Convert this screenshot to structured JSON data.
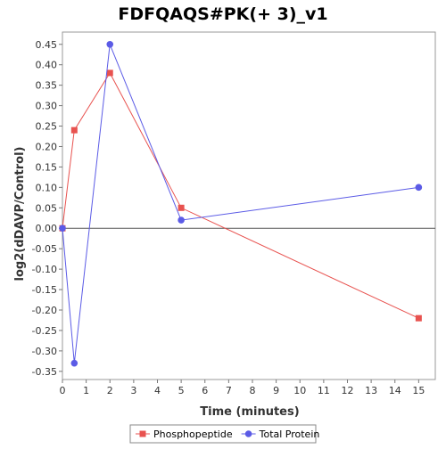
{
  "chart_data": {
    "type": "line",
    "title": "FDFQAQS#PK(+ 3)_v1",
    "xlabel": "Time (minutes)",
    "ylabel": "log2(dDAVP/Control)",
    "xlim": [
      0,
      15.7
    ],
    "ylim": [
      -0.37,
      0.48
    ],
    "x_ticks": [
      0,
      1,
      2,
      3,
      4,
      5,
      6,
      7,
      8,
      9,
      10,
      11,
      12,
      13,
      14,
      15
    ],
    "y_ticks": [
      -0.35,
      -0.3,
      -0.25,
      -0.2,
      -0.15,
      -0.1,
      -0.05,
      0.0,
      0.05,
      0.1,
      0.15,
      0.2,
      0.25,
      0.3,
      0.35,
      0.4,
      0.45
    ],
    "y_tick_labels": [
      "-0.35",
      "-0.30",
      "-0.25",
      "-0.20",
      "-0.15",
      "-0.10",
      "-0.05",
      "0.00",
      "0.05",
      "0.10",
      "0.15",
      "0.20",
      "0.25",
      "0.30",
      "0.35",
      "0.40",
      "0.45"
    ],
    "grid": false,
    "zero_line": true,
    "legend_position": "bottom",
    "series": [
      {
        "name": "Phosphopeptide",
        "color": "#e8524f",
        "marker": "square",
        "points": [
          {
            "x": 0,
            "y": 0.0
          },
          {
            "x": 0.5,
            "y": 0.24
          },
          {
            "x": 2,
            "y": 0.38
          },
          {
            "x": 5,
            "y": 0.05
          },
          {
            "x": 15,
            "y": -0.22
          }
        ]
      },
      {
        "name": "Total Protein",
        "color": "#5b5be6",
        "marker": "circle",
        "points": [
          {
            "x": 0,
            "y": 0.0
          },
          {
            "x": 0.5,
            "y": -0.33
          },
          {
            "x": 2,
            "y": 0.45
          },
          {
            "x": 5,
            "y": 0.02
          },
          {
            "x": 15,
            "y": 0.1
          }
        ]
      }
    ]
  }
}
